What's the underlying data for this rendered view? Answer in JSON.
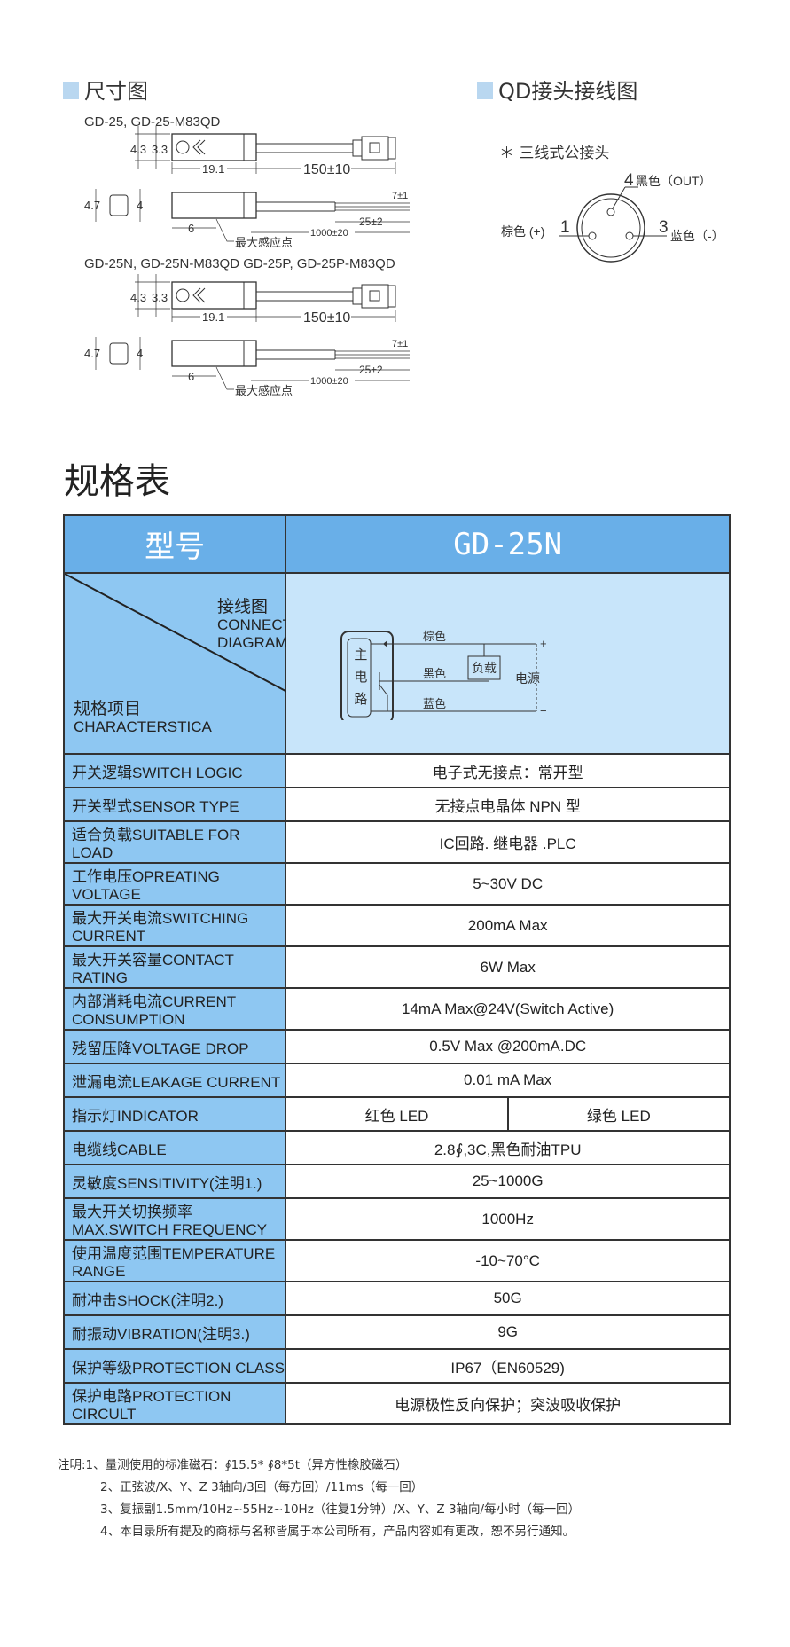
{
  "dimensions": {
    "title": "尺寸图",
    "models_1": "GD-25, GD-25-M83QD",
    "models_2": "GD-25N, GD-25N-M83QD GD-25P, GD-25P-M83QD",
    "dim_43": "4.3",
    "dim_33": "3.3",
    "dim_191": "19.1",
    "dim_150": "150±10",
    "dim_47": "4.7",
    "dim_4": "4",
    "dim_7": "7±1",
    "dim_25": "25±2",
    "dim_1000": "1000±20",
    "dim_6": "6",
    "sense_point": "最大感应点"
  },
  "qd": {
    "title": "QD接头接线图",
    "subtitle": "＊ 三线式公接头",
    "pin4": "4",
    "pin4_label": "黑色（OUT）",
    "pin1": "1",
    "pin1_label": "棕色 (+)",
    "pin3": "3",
    "pin3_label": "蓝色（-）"
  },
  "spec": {
    "title": "规格表",
    "header_label": "型号",
    "header_model": "GD-25N",
    "diagram_cn": "接线图",
    "diagram_en": "CONNECT DIAGRAM",
    "items_cn": "规格项目",
    "items_en": "CHARACTERSTICA",
    "circuit": {
      "main": "主电路",
      "brown": "棕色",
      "black": "黑色",
      "blue": "蓝色",
      "load": "负载",
      "power": "电源",
      "plus": "+",
      "minus": "−"
    },
    "rows": [
      {
        "label": "开关逻辑SWITCH LOGIC",
        "value": "电子式无接点：常开型"
      },
      {
        "label": "开关型式SENSOR TYPE",
        "value": "无接点电晶体 NPN 型"
      },
      {
        "label": "适合负载SUITABLE FOR LOAD",
        "value": "IC回路. 继电器 .PLC"
      },
      {
        "label": "工作电压OPREATING VOLTAGE",
        "value": "5~30V DC"
      },
      {
        "label": "最大开关电流SWITCHING CURRENT",
        "value": "200mA Max"
      },
      {
        "label": "最大开关容量CONTACT RATING",
        "value": "6W Max"
      },
      {
        "label": "内部消耗电流CURRENT CONSUMPTION",
        "value": "14mA Max@24V(Switch Active)"
      },
      {
        "label": "残留压降VOLTAGE DROP",
        "value": "0.5V Max @200mA.DC"
      },
      {
        "label": "泄漏电流LEAKAGE CURRENT",
        "value": "0.01 mA Max"
      },
      {
        "label": "指示灯INDICATOR",
        "value_a": "红色 LED",
        "value_b": "绿色 LED"
      },
      {
        "label": "电缆线CABLE",
        "value": "2.8∮,3C,黑色耐油TPU"
      },
      {
        "label": "灵敏度SENSITIVITY(注明1.)",
        "value": "25~1000G"
      },
      {
        "label": "最大开关切换频率MAX.SWITCH FREQUENCY",
        "value": "1000Hz"
      },
      {
        "label": "使用温度范围TEMPERATURE RANGE",
        "value": "-10~70°C"
      },
      {
        "label": "耐冲击SHOCK(注明2.)",
        "value": "50G"
      },
      {
        "label": "耐振动VIBRATION(注明3.)",
        "value": "9G"
      },
      {
        "label": "保护等级PROTECTION CLASS",
        "value": "IP67（EN60529)"
      },
      {
        "label": "保护电路PROTECTION CIRCULT",
        "value": "电源极性反向保护；突波吸收保护"
      }
    ]
  },
  "notes": [
    "注明:1、量测使用的标准磁石：∮15.5* ∮8*5t（异方性橡胶磁石）",
    "2、正弦波/X、Y、Z 3轴向/3回（每方回）/11ms（每一回）",
    "3、复振副1.5mm/10Hz~55Hz~10Hz（往复1分钟）/X、Y、Z 3轴向/每小时（每一回）",
    "4、本目录所有提及的商标与名称皆属于本公司所有，产品内容如有更改，恕不另行通知。"
  ],
  "colors": {
    "header_blue": "#69afe8",
    "label_blue": "#8ec7f2",
    "diagram_bg": "#c8e5fa",
    "section_marker": "#b9d7f0"
  }
}
